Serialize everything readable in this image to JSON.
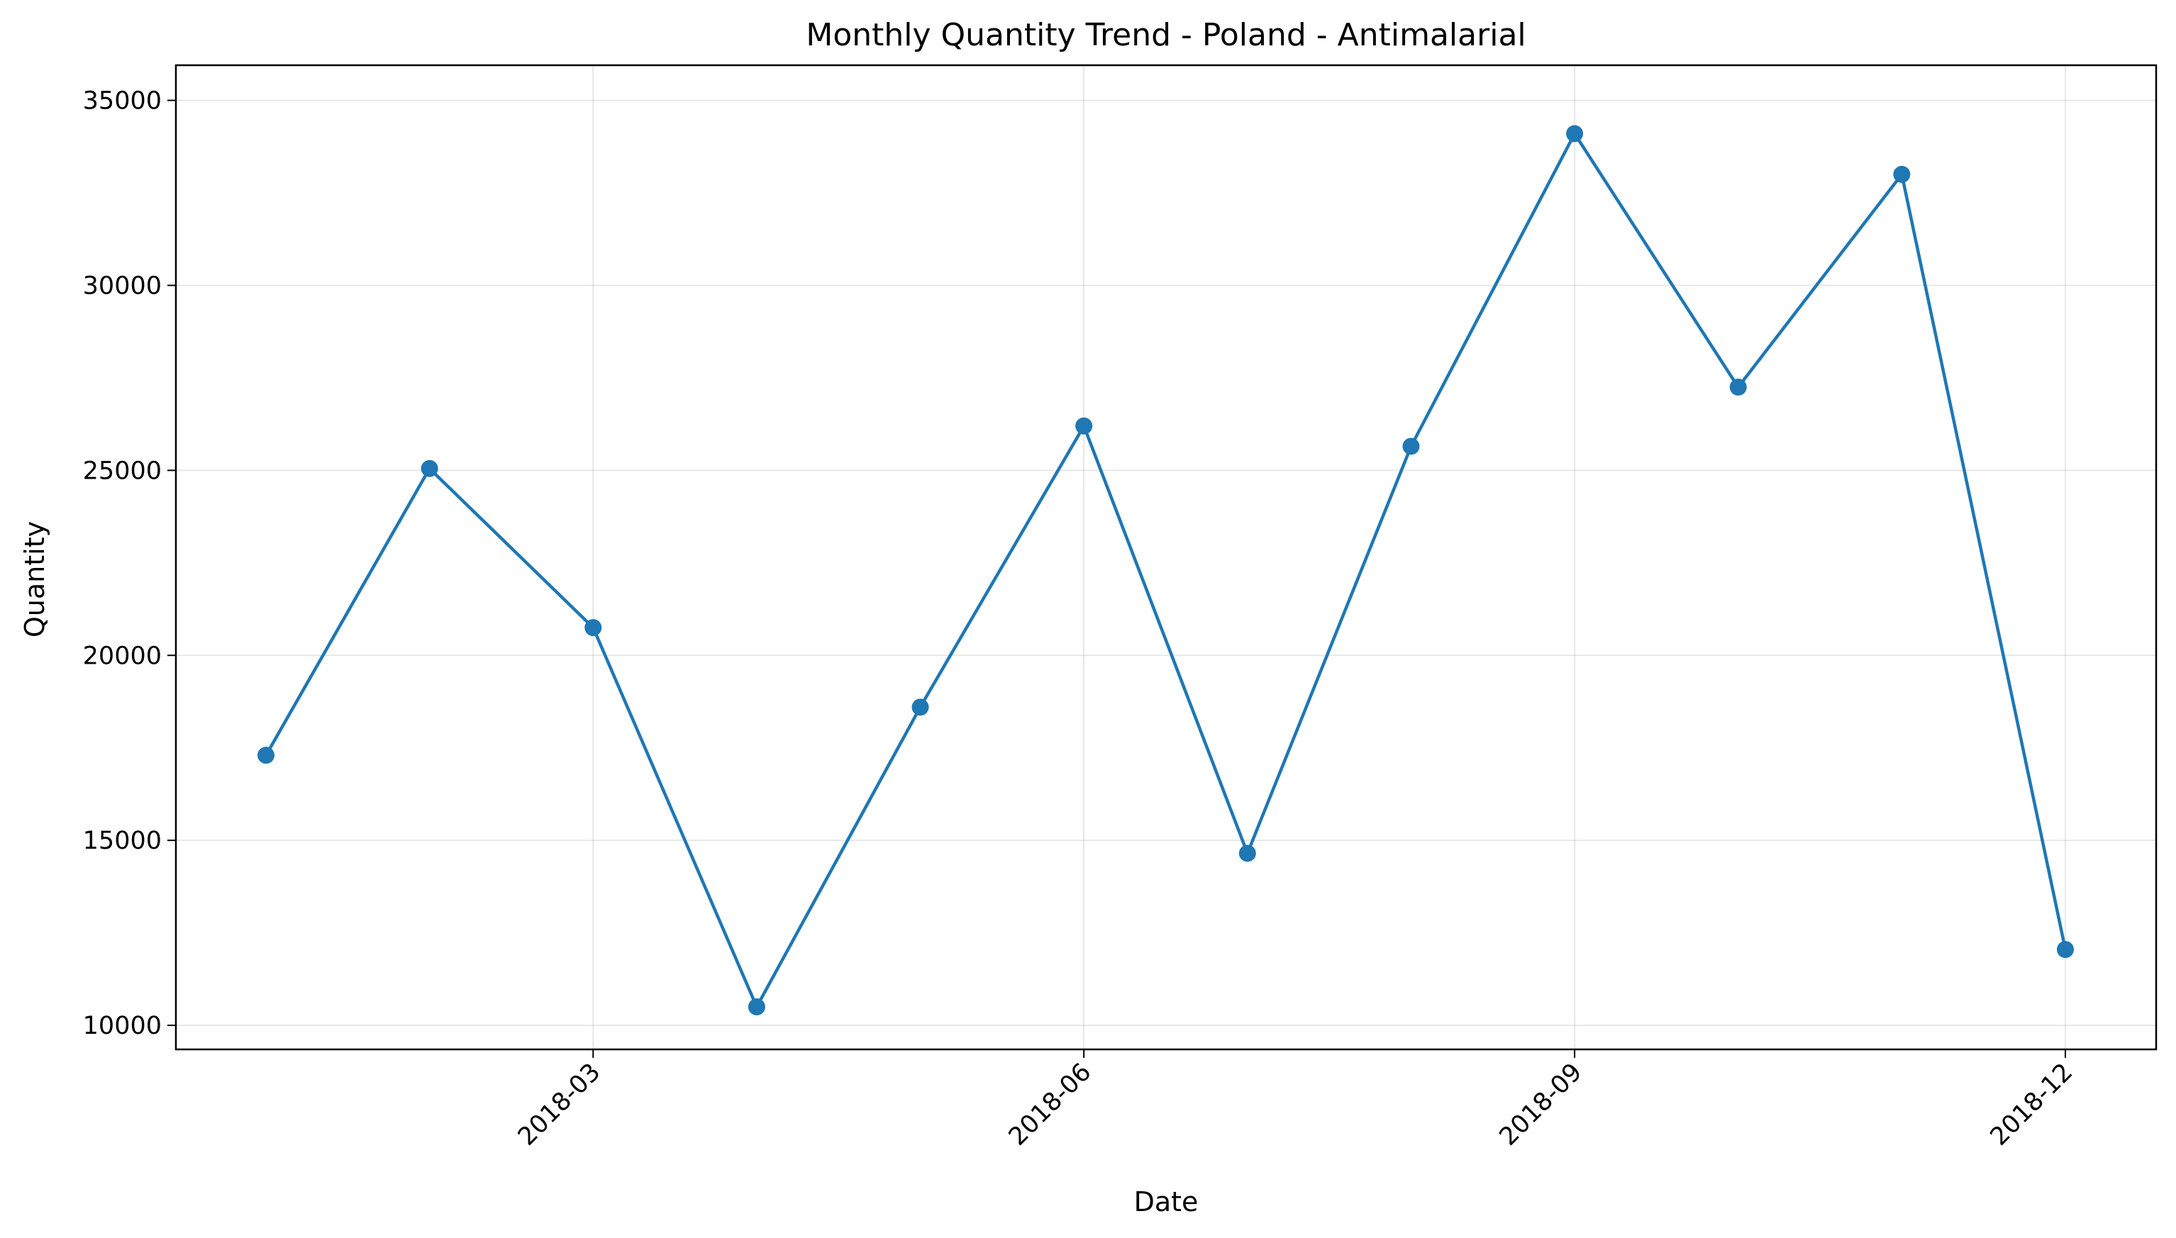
{
  "chart_data": {
    "type": "line",
    "title": "Monthly Quantity Trend - Poland - Antimalarial",
    "xlabel": "Date",
    "ylabel": "Quantity",
    "x": [
      "2018-01",
      "2018-02",
      "2018-03",
      "2018-04",
      "2018-05",
      "2018-06",
      "2018-07",
      "2018-08",
      "2018-09",
      "2018-10",
      "2018-11",
      "2018-12"
    ],
    "series": [
      {
        "values": [
          17300,
          25050,
          20750,
          10500,
          18600,
          26200,
          14650,
          25650,
          34100,
          27250,
          33000,
          12050
        ],
        "color": "#1f77b4"
      }
    ],
    "x_ticks": [
      "2018-03",
      "2018-06",
      "2018-09",
      "2018-12"
    ],
    "y_ticks": [
      10000,
      15000,
      20000,
      25000,
      30000,
      35000
    ],
    "ylim": [
      9350,
      35950
    ],
    "grid": true,
    "legend": "none"
  }
}
